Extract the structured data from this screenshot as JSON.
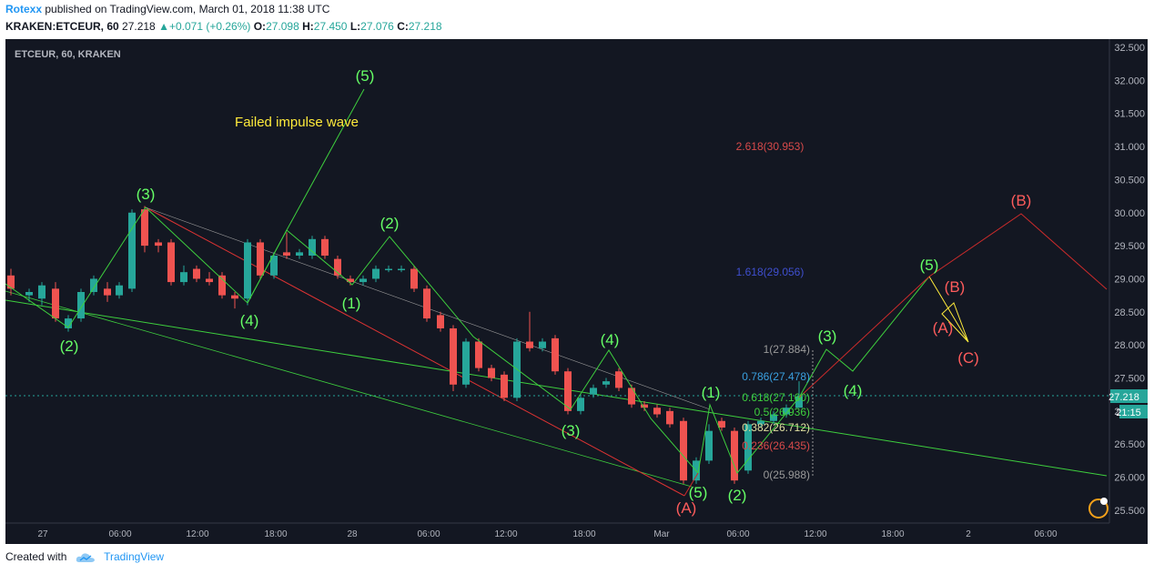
{
  "header": {
    "user": "Rotexx",
    "published": "published on TradingView.com, March 01, 2018 11:38 UTC",
    "symbol": "KRAKEN:ETCEUR, 60",
    "last": "27.218",
    "change": "+0.071 (+0.26%)",
    "o_label": "O:",
    "o_value": "27.098",
    "h_label": "H:",
    "h_value": "27.450",
    "l_label": "L:",
    "l_value": "27.076",
    "c_label": "C:",
    "c_value": "27.218"
  },
  "chart_label": "ETCEUR, 60, KRAKEN",
  "price_scale": [
    "32.500",
    "32.000",
    "31.500",
    "31.000",
    "30.500",
    "30.000",
    "29.500",
    "29.000",
    "28.500",
    "28.000",
    "27.500",
    "27.000",
    "26.500",
    "26.000",
    "25.500"
  ],
  "time_scale": [
    "27",
    "06:00",
    "12:00",
    "18:00",
    "28",
    "06:00",
    "12:00",
    "18:00",
    "Mar",
    "06:00",
    "12:00",
    "18:00",
    "2",
    "06:00"
  ],
  "price_badge": "27.218",
  "time_badge": "21:15",
  "annotation": "Failed impulse wave",
  "fib_levels": [
    "2.618(30.953)",
    "1.618(29.056)",
    "1(27.884)",
    "0.786(27.478)",
    "0.618(27.160)",
    "0.5(26.936)",
    "0.382(26.712)",
    "0.236(26.435)",
    "0(25.988)"
  ],
  "wave_labels": [
    "(2)",
    "(3)",
    "(4)",
    "(5)",
    "(1)",
    "(2)",
    "(3)",
    "(4)",
    "(5)",
    "(1)",
    "(2)",
    "(3)",
    "(4)",
    "(5)",
    "(A)",
    "(B)",
    "(C)",
    "(A)",
    "(B)"
  ],
  "footer": {
    "created_with": "Created with",
    "brand": "TradingView"
  },
  "colors": {
    "bull": "#26a69a",
    "bear": "#ef5350",
    "wave": "#66ff66",
    "bearwave": "#ff5c5c",
    "bg": "#131722"
  }
}
